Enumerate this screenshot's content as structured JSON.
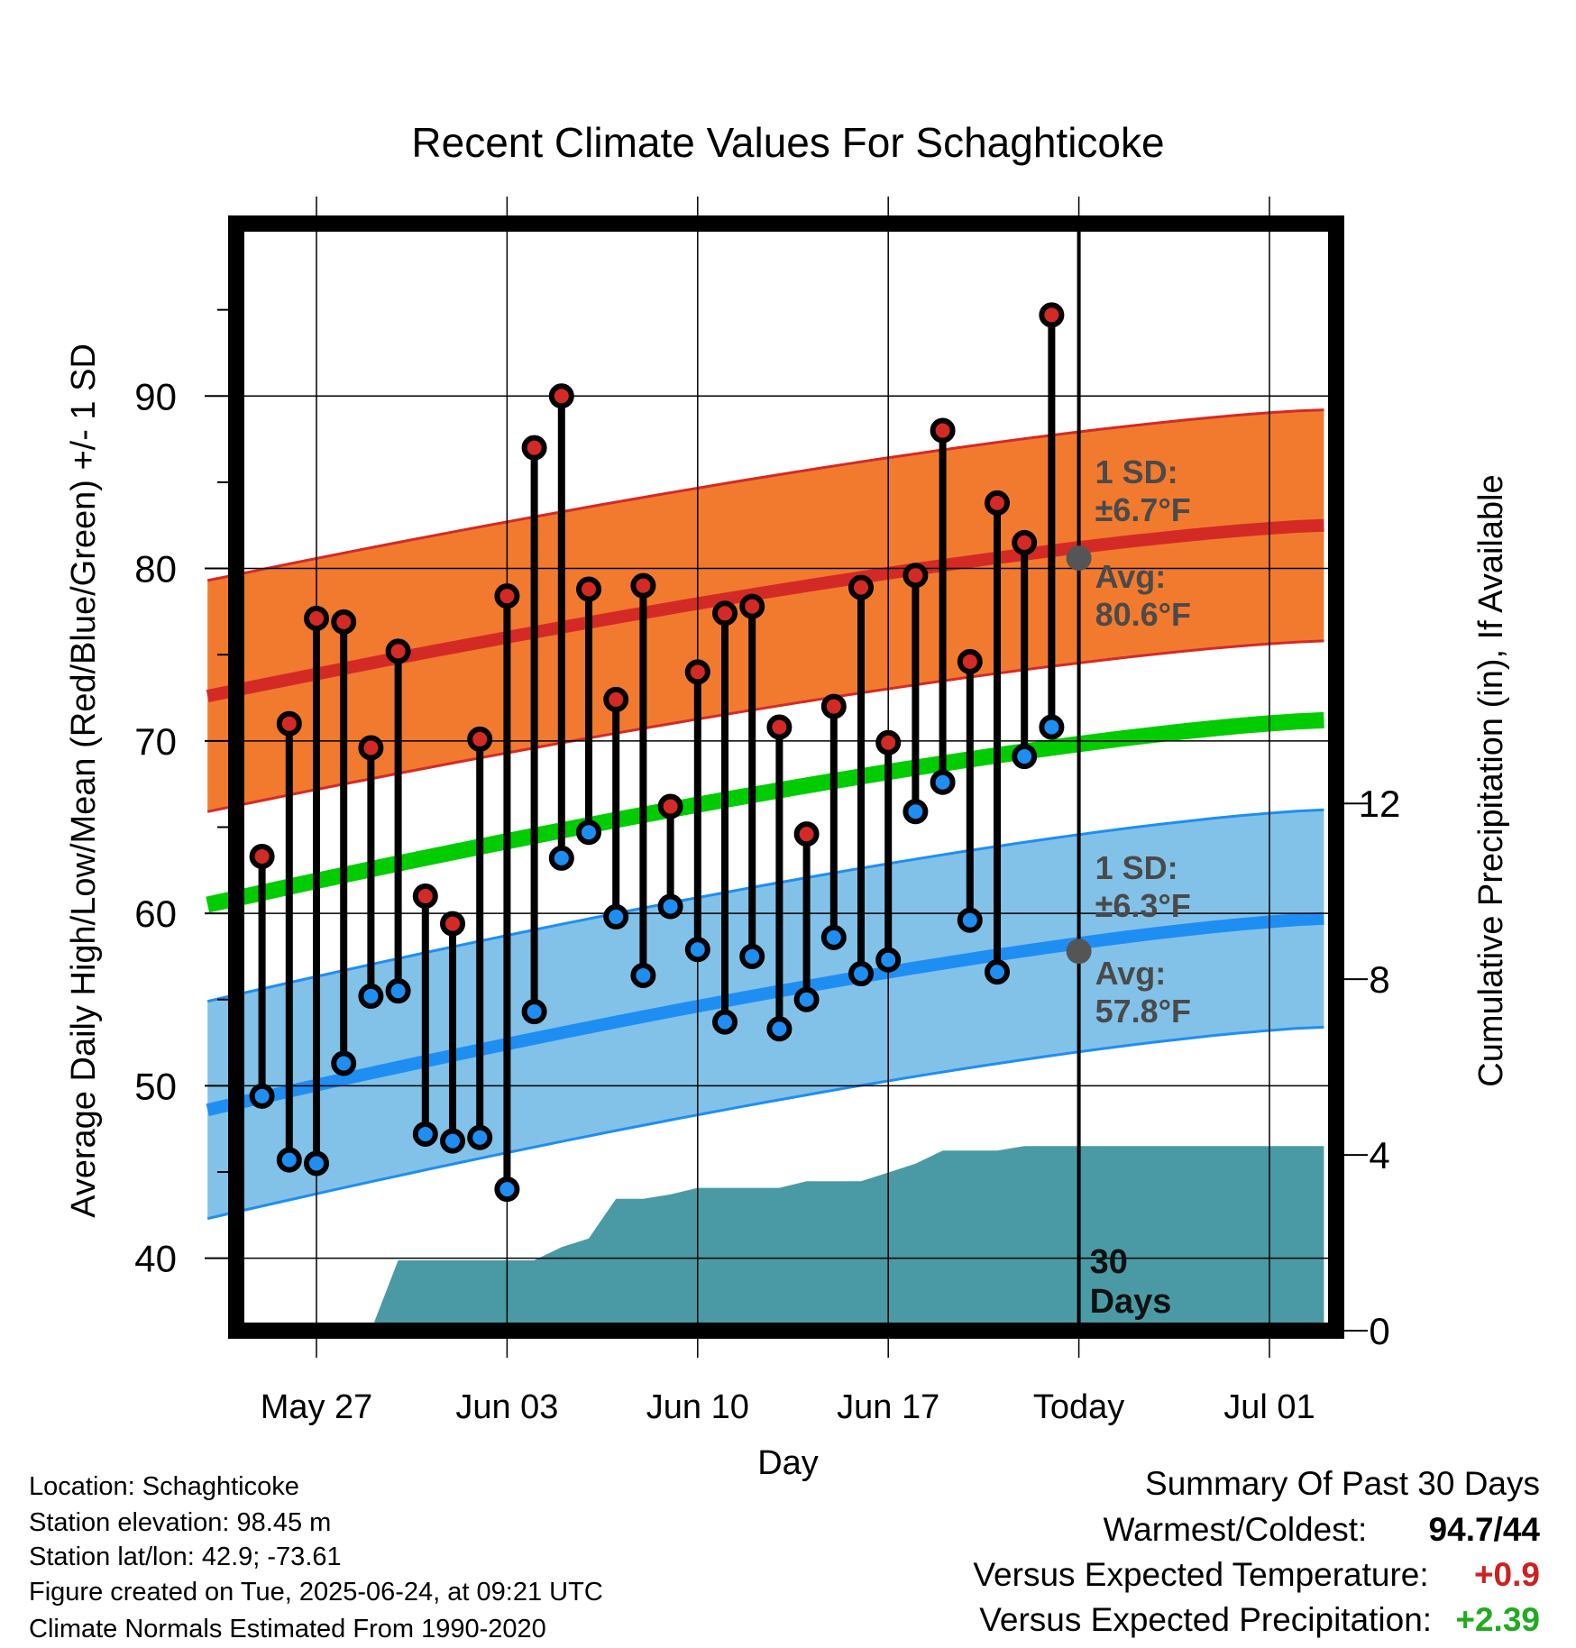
{
  "chart_data": {
    "type": "line",
    "title": "Recent Climate Values For Schaghticoke",
    "xlabel": "Day",
    "ylabel": "Average Daily High/Low/Mean (Red/Blue/Green) +/- 1 SD",
    "y2label": "Cumulative Precipitation (in), If Available",
    "x_ticks": [
      "May 27",
      "Jun 03",
      "Jun 10",
      "Jun 17",
      "Today",
      "Jul 01"
    ],
    "y_ticks": [
      40,
      50,
      60,
      70,
      80,
      90
    ],
    "y2_ticks": [
      0,
      4,
      8,
      12
    ],
    "ylim": [
      35.8,
      100
    ],
    "y2lim": [
      0,
      25.2
    ],
    "xlim": [
      "2025-05-23",
      "2025-07-03"
    ],
    "today": "2025-06-24",
    "today_label": [
      "30",
      "Days"
    ],
    "grid": true,
    "dates": [
      "2025-05-25",
      "2025-05-26",
      "2025-05-27",
      "2025-05-28",
      "2025-05-29",
      "2025-05-30",
      "2025-05-31",
      "2025-06-01",
      "2025-06-02",
      "2025-06-03",
      "2025-06-04",
      "2025-06-05",
      "2025-06-06",
      "2025-06-07",
      "2025-06-08",
      "2025-06-09",
      "2025-06-10",
      "2025-06-11",
      "2025-06-12",
      "2025-06-13",
      "2025-06-14",
      "2025-06-15",
      "2025-06-16",
      "2025-06-17",
      "2025-06-18",
      "2025-06-19",
      "2025-06-20",
      "2025-06-21",
      "2025-06-22",
      "2025-06-23"
    ],
    "observed_high": [
      63.3,
      71.0,
      77.1,
      76.9,
      69.6,
      75.2,
      61.0,
      59.4,
      70.1,
      78.4,
      87.0,
      90.0,
      78.8,
      72.4,
      79.0,
      66.2,
      74.0,
      77.4,
      77.8,
      70.8,
      64.6,
      72.0,
      78.9,
      69.9,
      79.6,
      88.0,
      74.6,
      83.8,
      81.5,
      94.7
    ],
    "observed_low": [
      49.4,
      45.7,
      45.5,
      51.3,
      55.2,
      55.5,
      47.2,
      46.8,
      47.0,
      44.0,
      54.3,
      63.2,
      64.7,
      59.8,
      56.4,
      60.4,
      57.9,
      53.7,
      57.5,
      53.3,
      55.0,
      58.6,
      56.5,
      57.3,
      65.9,
      67.6,
      59.6,
      56.6,
      69.1,
      70.8
    ],
    "normal_high": {
      "start": 72.6,
      "end": 82.5
    },
    "normal_high_sd": 6.7,
    "normal_mean": {
      "start": 60.5,
      "end": 71.2
    },
    "normal_low": {
      "start": 48.6,
      "end": 59.7
    },
    "normal_low_sd": 6.3,
    "precip_cumulative": {
      "dates": [
        "2025-05-29",
        "2025-05-30",
        "2025-06-01",
        "2025-06-02",
        "2025-06-03",
        "2025-06-04",
        "2025-06-05",
        "2025-06-06",
        "2025-06-07",
        "2025-06-08",
        "2025-06-09",
        "2025-06-10",
        "2025-06-11",
        "2025-06-12",
        "2025-06-13",
        "2025-06-14",
        "2025-06-15",
        "2025-06-16",
        "2025-06-17",
        "2025-06-18",
        "2025-06-19",
        "2025-06-20",
        "2025-06-21",
        "2025-06-22",
        "2025-06-23",
        "2025-06-24"
      ],
      "values": [
        0,
        1.6,
        1.6,
        1.6,
        1.6,
        1.6,
        1.9,
        2.1,
        3.0,
        3.0,
        3.1,
        3.25,
        3.25,
        3.25,
        3.25,
        3.4,
        3.4,
        3.4,
        3.6,
        3.8,
        4.1,
        4.1,
        4.1,
        4.2,
        4.2,
        4.2
      ]
    },
    "annotations": {
      "high_sd": [
        "1 SD:",
        "±6.7°F"
      ],
      "high_avg": [
        "Avg:",
        "80.6°F"
      ],
      "low_sd": [
        "1 SD:",
        "±6.3°F"
      ],
      "low_avg": [
        "Avg:",
        "57.8°F"
      ]
    },
    "colors": {
      "high_band": "#f27a2f",
      "high_line": "#d42a25",
      "mean_line": "#00cc00",
      "low_band": "#82c2e8",
      "low_line": "#1e8ef2",
      "precip": "#4a9aa5",
      "annotation": "#4a4a4a",
      "avg_dot": "#555555"
    }
  },
  "station_info": {
    "location": "Location: Schaghticoke",
    "elevation": "Station elevation: 98.45 m",
    "latlon": "Station lat/lon: 42.9; -73.61",
    "created": "Figure created on Tue, 2025-06-24, at 09:21 UTC",
    "normals": "Climate Normals Estimated From 1990-2020"
  },
  "summary": {
    "title": "Summary Of Past 30 Days",
    "warmest_coldest_label": "Warmest/Coldest:",
    "warmest_coldest_value": "94.7/44",
    "temp_label": "Versus Expected Temperature:",
    "temp_value": "+0.9",
    "temp_color": "#cc2222",
    "precip_label": "Versus Expected Precipitation:",
    "precip_value": "+2.39",
    "precip_color": "#22aa22"
  }
}
